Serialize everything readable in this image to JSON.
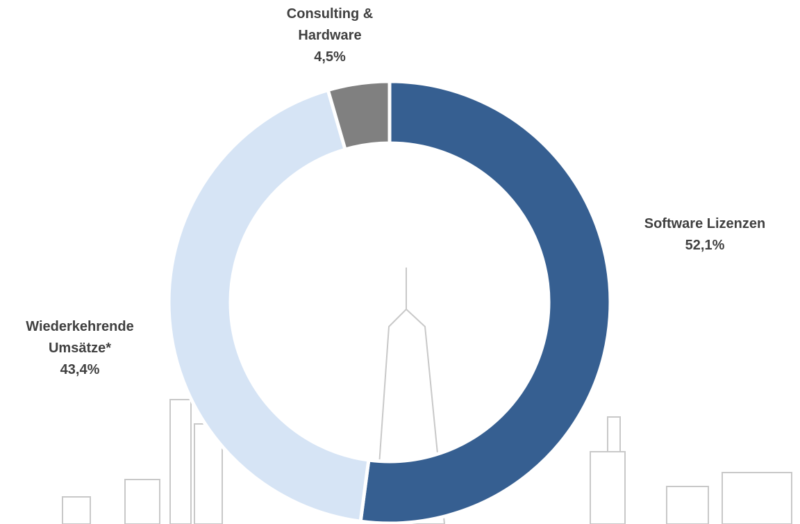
{
  "chart_data": {
    "type": "donut",
    "categories": [
      "Software Lizenzen",
      "Wiederkehrende Umsätze*",
      "Consulting & Hardware"
    ],
    "values": [
      52.1,
      43.4,
      4.5
    ],
    "value_labels": [
      "52,1%",
      "43,4%",
      "4,5%"
    ],
    "colors": [
      "#365f91",
      "#d6e4f5",
      "#808080"
    ]
  }
}
